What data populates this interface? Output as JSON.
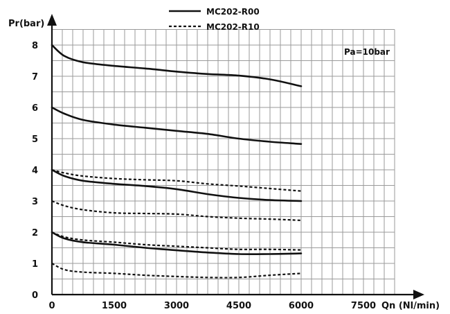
{
  "chart_data": {
    "type": "line",
    "title": "",
    "xlabel": "Qn (Nl/min)",
    "ylabel": "Pr(bar)",
    "xlim": [
      0,
      9000
    ],
    "ylim": [
      0,
      8.5
    ],
    "x_ticks": [
      0,
      1500,
      3000,
      4500,
      6000,
      7500
    ],
    "y_ticks": [
      0,
      1,
      2,
      3,
      4,
      5,
      6,
      7,
      8
    ],
    "grid": true,
    "annotation": "Pa=10bar",
    "legend": {
      "placement": "top-center",
      "entries": [
        {
          "name": "MC202-R00",
          "style": "solid"
        },
        {
          "name": "MC202-R10",
          "style": "dashed"
        }
      ]
    },
    "series": [
      {
        "name": "MC202-R00",
        "style": "solid",
        "x": [
          0,
          300,
          750,
          1500,
          2250,
          3000,
          3750,
          4500,
          5250,
          6000
        ],
        "y": [
          8.0,
          7.65,
          7.45,
          7.33,
          7.25,
          7.15,
          7.07,
          7.02,
          6.9,
          6.68
        ]
      },
      {
        "name": "MC202-R00",
        "style": "solid",
        "x": [
          0,
          300,
          750,
          1500,
          2250,
          3000,
          3750,
          4500,
          5250,
          6000
        ],
        "y": [
          6.0,
          5.8,
          5.6,
          5.45,
          5.35,
          5.25,
          5.15,
          5.0,
          4.9,
          4.83
        ]
      },
      {
        "name": "MC202-R00",
        "style": "solid",
        "x": [
          0,
          300,
          750,
          1500,
          2250,
          3000,
          3750,
          4500,
          5250,
          6000
        ],
        "y": [
          4.0,
          3.8,
          3.65,
          3.55,
          3.48,
          3.38,
          3.22,
          3.1,
          3.03,
          3.0
        ]
      },
      {
        "name": "MC202-R00",
        "style": "solid",
        "x": [
          0,
          300,
          750,
          1500,
          2250,
          3000,
          3750,
          4500,
          5250,
          6000
        ],
        "y": [
          2.0,
          1.8,
          1.68,
          1.6,
          1.5,
          1.42,
          1.35,
          1.3,
          1.3,
          1.32
        ]
      },
      {
        "name": "MC202-R10",
        "style": "dashed",
        "x": [
          0,
          300,
          750,
          1500,
          2250,
          3000,
          3750,
          4500,
          5250,
          6000
        ],
        "y": [
          4.0,
          3.9,
          3.8,
          3.72,
          3.68,
          3.65,
          3.55,
          3.48,
          3.4,
          3.32
        ]
      },
      {
        "name": "MC202-R10",
        "style": "dashed",
        "x": [
          0,
          300,
          750,
          1500,
          2250,
          3000,
          3750,
          4500,
          5250,
          6000
        ],
        "y": [
          3.0,
          2.85,
          2.72,
          2.62,
          2.6,
          2.58,
          2.5,
          2.45,
          2.42,
          2.38
        ]
      },
      {
        "name": "MC202-R10",
        "style": "dashed",
        "x": [
          0,
          300,
          750,
          1500,
          2250,
          3000,
          3750,
          4500,
          5250,
          6000
        ],
        "y": [
          2.0,
          1.85,
          1.75,
          1.68,
          1.6,
          1.55,
          1.5,
          1.45,
          1.45,
          1.43
        ]
      },
      {
        "name": "MC202-R10",
        "style": "dashed",
        "x": [
          0,
          300,
          750,
          1500,
          2250,
          3000,
          3750,
          4500,
          5250,
          6000
        ],
        "y": [
          1.0,
          0.8,
          0.72,
          0.68,
          0.62,
          0.58,
          0.55,
          0.55,
          0.62,
          0.68
        ]
      }
    ]
  }
}
